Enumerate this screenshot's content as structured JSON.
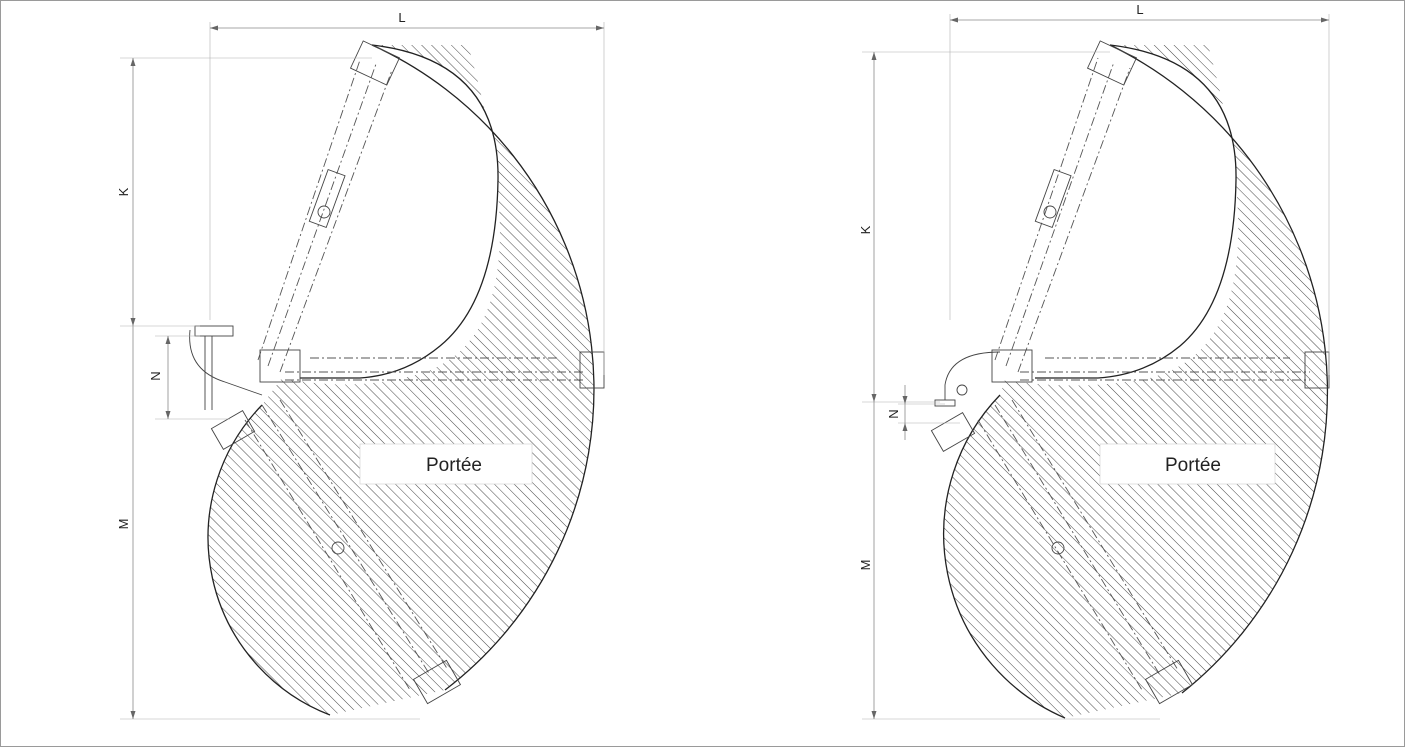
{
  "diagrams": [
    {
      "id": "left",
      "labels": {
        "width": "L",
        "upper_height": "K",
        "offset": "N",
        "lower_height": "M"
      },
      "region_label": "Portée"
    },
    {
      "id": "right",
      "labels": {
        "width": "L",
        "upper_height": "K",
        "offset": "N",
        "lower_height": "M"
      },
      "region_label": "Portée"
    }
  ],
  "colors": {
    "line": "#222222",
    "hatch": "#333333",
    "dimension": "#8a8a8a",
    "background": "#ffffff"
  }
}
